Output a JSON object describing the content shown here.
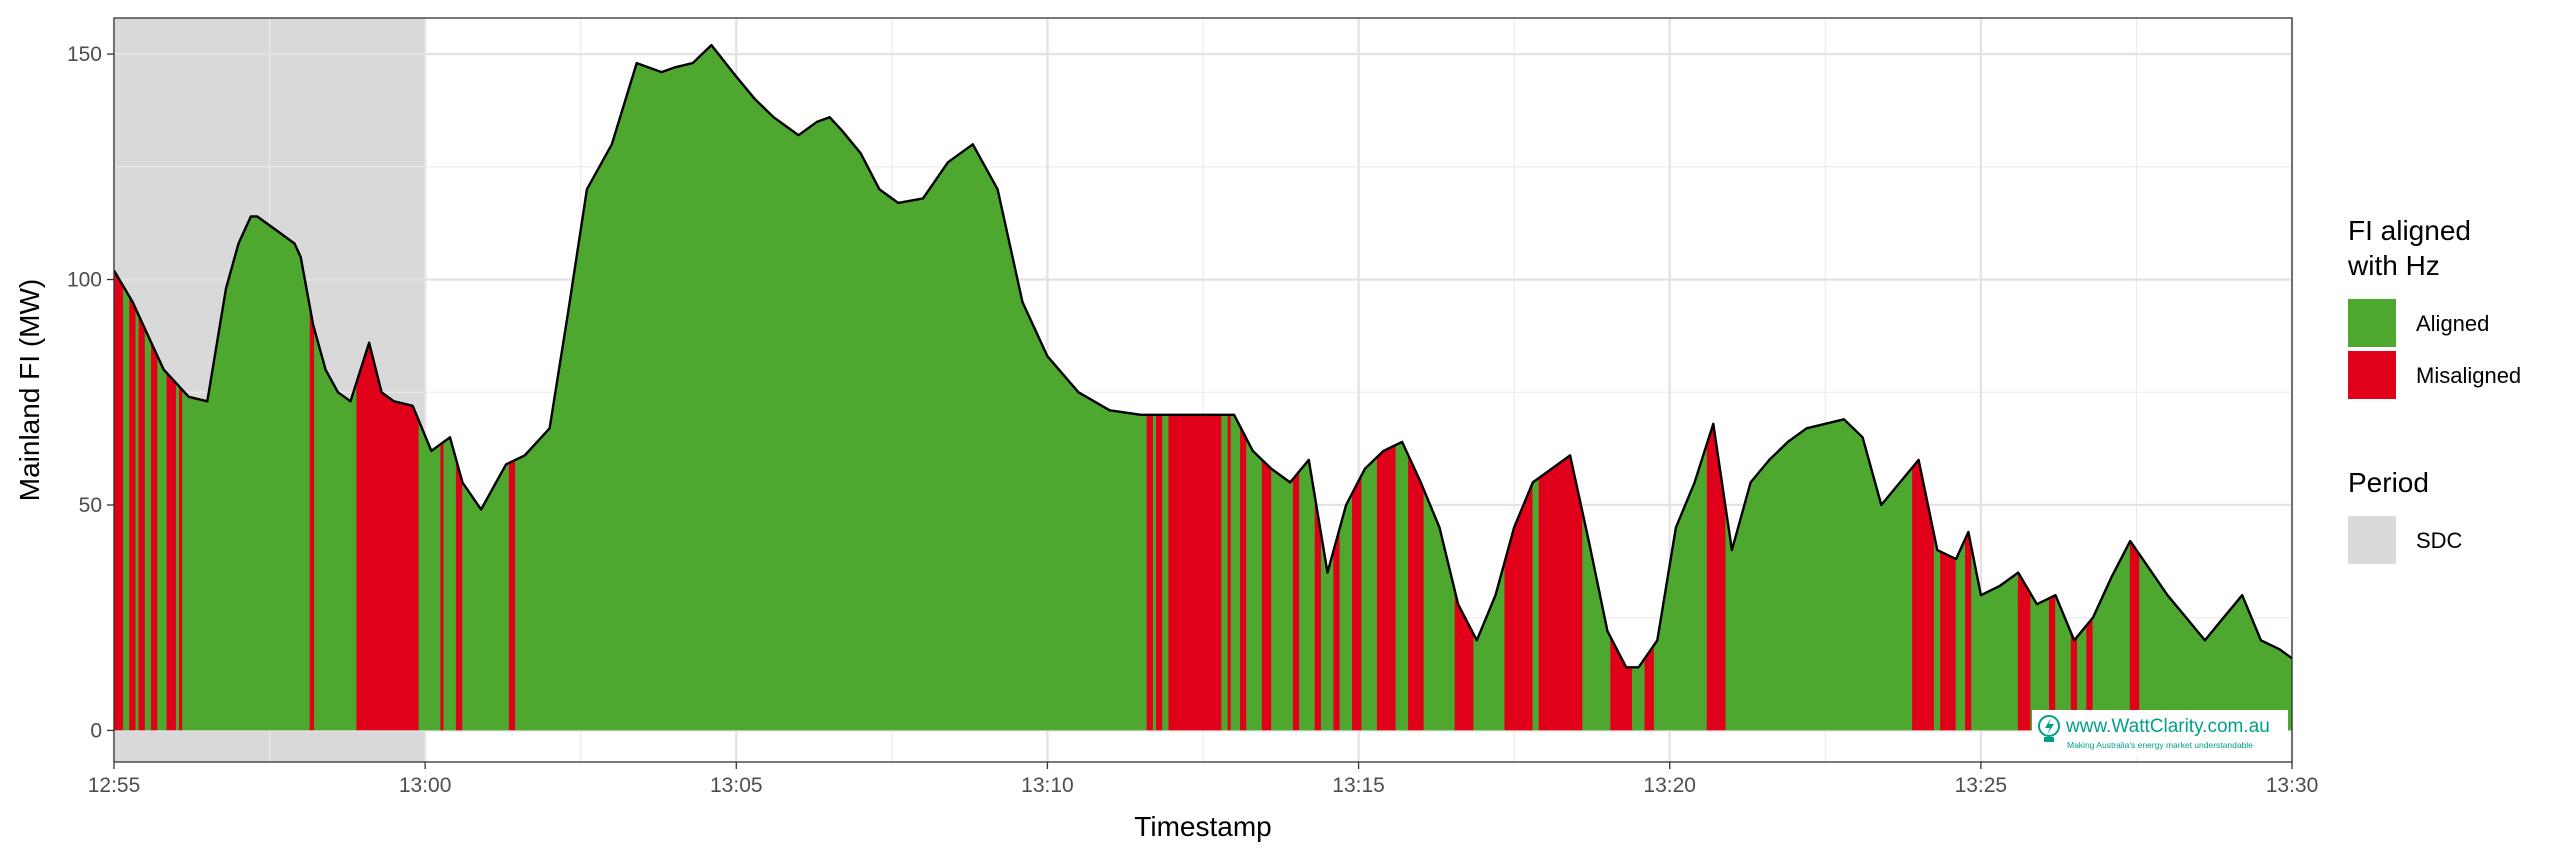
{
  "chart_data": {
    "type": "area",
    "title": "",
    "xlabel": "Timestamp",
    "ylabel": "Mainland FI (MW)",
    "x_range": [
      "12:55",
      "13:30"
    ],
    "ylim": [
      -7,
      158
    ],
    "x_ticks": [
      "12:55",
      "13:00",
      "13:05",
      "13:10",
      "13:15",
      "13:20",
      "13:25",
      "13:30"
    ],
    "y_ticks": [
      0,
      50,
      100,
      150
    ],
    "grid": true,
    "legend_position": "right",
    "colors": {
      "Aligned": "#4ea72e",
      "Misaligned": "#e0001a",
      "SDC": "#d9d9d9",
      "line": "#000000"
    },
    "legend_fill": {
      "title": "FI aligned\nwith Hz",
      "title_lines": [
        "FI aligned",
        "with Hz"
      ],
      "entries": [
        "Aligned",
        "Misaligned"
      ]
    },
    "legend_period": {
      "title": "Period",
      "entries": [
        "SDC"
      ]
    },
    "sdc_period": [
      "12:55",
      "13:00"
    ],
    "series": [
      {
        "name": "Mainland FI (MW)",
        "x_minutes": [
          0,
          0.3,
          0.6,
          0.8,
          1.0,
          1.2,
          1.5,
          1.8,
          2.0,
          2.2,
          2.3,
          2.5,
          2.7,
          2.9,
          3.0,
          3.2,
          3.4,
          3.6,
          3.8,
          4.1,
          4.3,
          4.5,
          4.8,
          5.1,
          5.4,
          5.6,
          5.9,
          6.3,
          6.6,
          7.0,
          7.3,
          7.6,
          8.0,
          8.4,
          8.8,
          9.0,
          9.3,
          9.6,
          10.0,
          10.3,
          10.6,
          11.0,
          11.3,
          11.5,
          11.7,
          12.0,
          12.3,
          12.6,
          13.0,
          13.4,
          13.8,
          14.2,
          14.6,
          15.0,
          15.5,
          16.0,
          16.5,
          17.0,
          17.5,
          18.0,
          18.3,
          18.6,
          18.9,
          19.2,
          19.5,
          19.8,
          20.1,
          20.4,
          20.7,
          21.0,
          21.3,
          21.6,
          21.9,
          22.2,
          22.5,
          22.8,
          23.1,
          23.4,
          23.7,
          24.0,
          24.3,
          24.5,
          24.8,
          25.1,
          25.4,
          25.7,
          26.0,
          26.3,
          26.6,
          26.9,
          27.2,
          27.5,
          27.8,
          28.1,
          28.4,
          28.7,
          29.0,
          29.3,
          29.6,
          29.8,
          30.0,
          30.3,
          30.6,
          30.9,
          31.2,
          31.5,
          31.8,
          32.1,
          32.4,
          32.7,
          33.0,
          33.3,
          33.6,
          33.9,
          34.2,
          34.5,
          34.8,
          35.0
        ],
        "y": [
          102,
          95,
          86,
          80,
          77,
          74,
          73,
          98,
          108,
          114,
          114,
          112,
          110,
          108,
          105,
          90,
          80,
          75,
          73,
          86,
          75,
          73,
          72,
          62,
          65,
          55,
          49,
          59,
          61,
          67,
          93,
          120,
          130,
          148,
          146,
          147,
          148,
          152,
          145,
          140,
          136,
          132,
          135,
          136,
          133,
          128,
          120,
          117,
          118,
          126,
          130,
          120,
          95,
          83,
          75,
          71,
          70,
          70,
          70,
          70,
          62,
          58,
          55,
          60,
          35,
          50,
          58,
          62,
          64,
          55,
          45,
          28,
          20,
          30,
          45,
          55,
          58,
          61,
          42,
          22,
          14,
          14,
          20,
          45,
          55,
          68,
          40,
          55,
          60,
          64,
          67,
          68,
          69,
          65,
          50,
          55,
          60,
          40,
          38,
          44,
          30,
          32,
          35,
          28,
          30,
          20,
          25,
          34,
          42,
          36,
          30,
          25,
          20,
          25,
          30,
          20,
          18,
          16
        ]
      }
    ],
    "fill_segments": {
      "boundaries_minutes": [
        0,
        0.15,
        0.25,
        0.35,
        0.4,
        0.5,
        0.6,
        0.7,
        0.85,
        1.0,
        1.05,
        1.1,
        1.5,
        3.15,
        3.22,
        3.9,
        4.9,
        5.25,
        5.3,
        5.5,
        5.6,
        6.35,
        6.45,
        6.6,
        16.6,
        16.7,
        16.75,
        16.85,
        16.95,
        17.8,
        17.9,
        17.95,
        18.1,
        18.2,
        18.45,
        18.6,
        18.95,
        19.05,
        19.3,
        19.4,
        19.6,
        19.7,
        19.9,
        20.05,
        20.3,
        20.6,
        20.8,
        21.05,
        21.55,
        21.85,
        22.35,
        22.8,
        22.9,
        23.6,
        24.05,
        24.4,
        24.6,
        24.75,
        25.6,
        25.9,
        28.9,
        29.25,
        29.35,
        29.6,
        29.75,
        29.85,
        30.6,
        30.8,
        31.1,
        31.2,
        31.45,
        31.55,
        31.7,
        31.8,
        32.4,
        32.55,
        35.0
      ],
      "states": [
        "Misaligned",
        "Aligned",
        "Misaligned",
        "Aligned",
        "Misaligned",
        "Aligned",
        "Misaligned",
        "Aligned",
        "Misaligned",
        "Aligned",
        "Misaligned",
        "Aligned",
        "Aligned",
        "Misaligned",
        "Aligned",
        "Misaligned",
        "Aligned",
        "Misaligned",
        "Aligned",
        "Misaligned",
        "Aligned",
        "Misaligned",
        "Aligned",
        "Aligned",
        "Misaligned",
        "Aligned",
        "Misaligned",
        "Aligned",
        "Misaligned",
        "Aligned",
        "Misaligned",
        "Aligned",
        "Misaligned",
        "Aligned",
        "Misaligned",
        "Aligned",
        "Misaligned",
        "Aligned",
        "Misaligned",
        "Aligned",
        "Misaligned",
        "Aligned",
        "Misaligned",
        "Aligned",
        "Misaligned",
        "Aligned",
        "Misaligned",
        "Aligned",
        "Misaligned",
        "Aligned",
        "Misaligned",
        "Aligned",
        "Misaligned",
        "Aligned",
        "Misaligned",
        "Aligned",
        "Misaligned",
        "Aligned",
        "Misaligned",
        "Aligned",
        "Misaligned",
        "Aligned",
        "Misaligned",
        "Aligned",
        "Misaligned",
        "Aligned",
        "Misaligned",
        "Aligned",
        "Misaligned",
        "Aligned",
        "Misaligned",
        "Aligned",
        "Misaligned",
        "Aligned",
        "Misaligned",
        "Aligned",
        "Misaligned"
      ]
    },
    "watermark": {
      "text": "www.WattClarity.com.au",
      "tagline": "Making Australia's energy market understandable"
    }
  }
}
